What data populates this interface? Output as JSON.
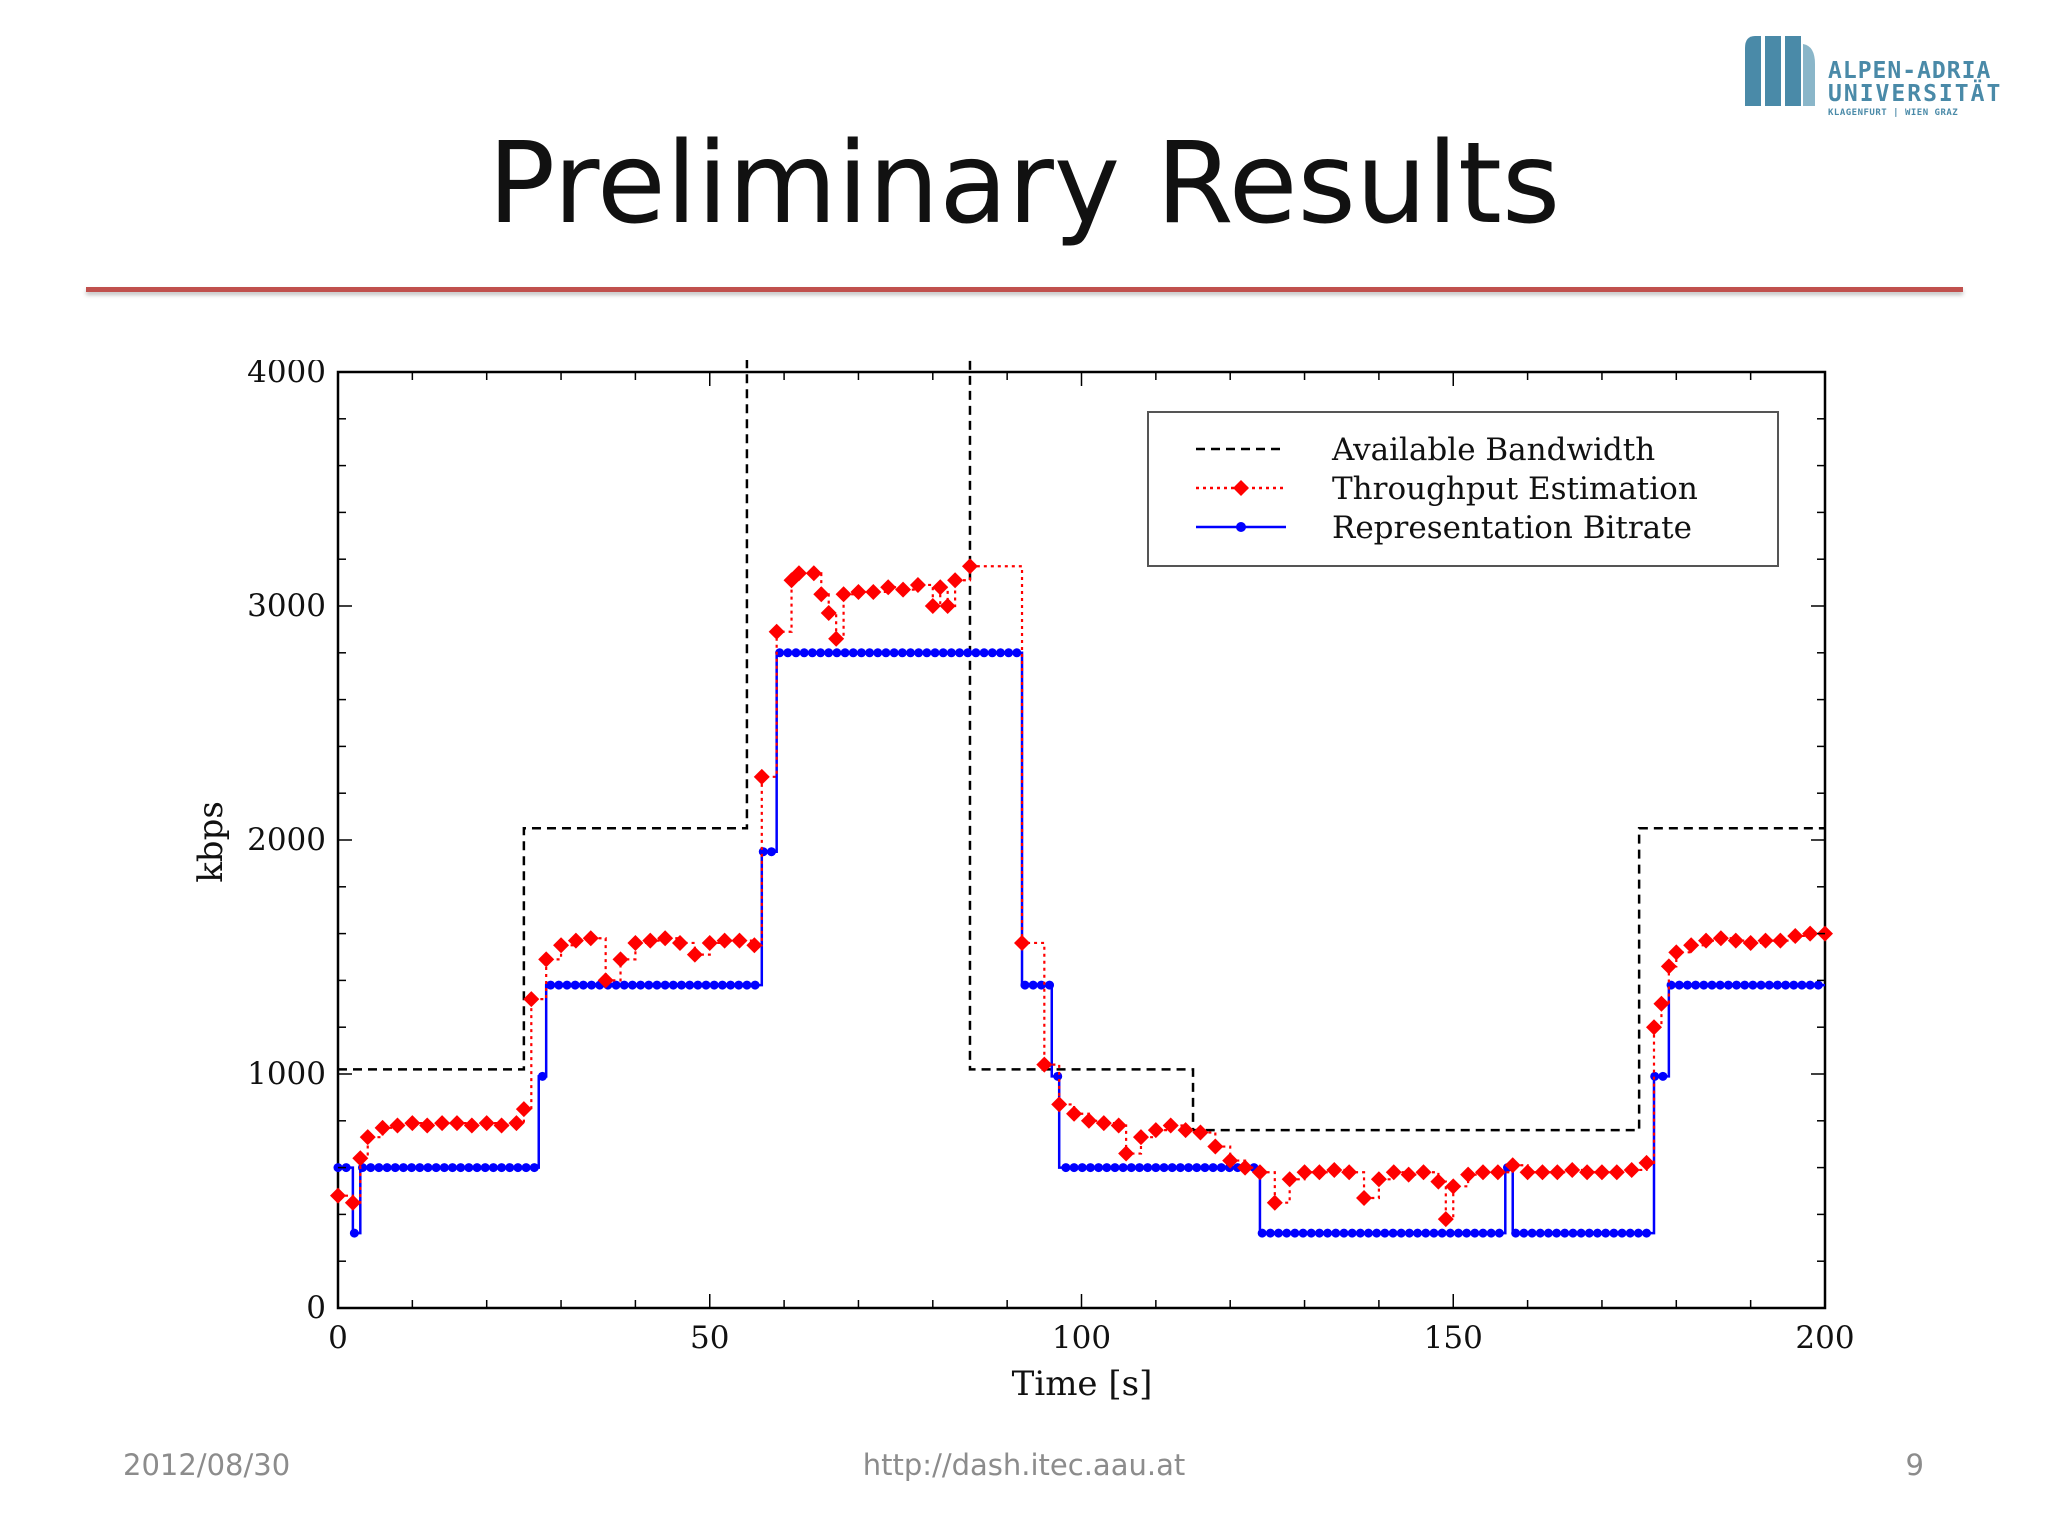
{
  "slide": {
    "title": "Preliminary Results",
    "footer_date": "2012/08/30",
    "footer_url": "http://dash.itec.aau.at",
    "page_number": "9"
  },
  "logo": {
    "line1": "ALPEN-ADRIA",
    "line2": "UNIVERSITÄT",
    "line3": "KLAGENFURT | WIEN GRAZ",
    "color": "#4a8aa8"
  },
  "chart_data": {
    "type": "line",
    "xlabel": "Time [s]",
    "ylabel": "kbps",
    "xlim": [
      0,
      200
    ],
    "ylim": [
      0,
      4000
    ],
    "xticks": [
      0,
      50,
      100,
      150,
      200
    ],
    "yticks": [
      0,
      1000,
      2000,
      3000,
      4000
    ],
    "grid": false,
    "legend_position": "top-right",
    "series": [
      {
        "name": "Available Bandwidth",
        "style": "dashed-step",
        "color": "#000000",
        "points": [
          [
            0,
            1020
          ],
          [
            25,
            1020
          ],
          [
            25,
            2050
          ],
          [
            55,
            2050
          ],
          [
            55,
            4100
          ],
          [
            85,
            4100
          ],
          [
            85,
            1020
          ],
          [
            115,
            1020
          ],
          [
            115,
            760
          ],
          [
            175,
            760
          ],
          [
            175,
            2050
          ],
          [
            200,
            2050
          ]
        ]
      },
      {
        "name": "Throughput Estimation",
        "style": "dotted-step-diamond",
        "color": "#ff0000",
        "points": [
          [
            0,
            480
          ],
          [
            2,
            450
          ],
          [
            3,
            640
          ],
          [
            4,
            730
          ],
          [
            6,
            770
          ],
          [
            8,
            780
          ],
          [
            10,
            790
          ],
          [
            12,
            780
          ],
          [
            14,
            790
          ],
          [
            16,
            790
          ],
          [
            18,
            780
          ],
          [
            20,
            790
          ],
          [
            22,
            780
          ],
          [
            24,
            790
          ],
          [
            25,
            850
          ],
          [
            26,
            1320
          ],
          [
            28,
            1490
          ],
          [
            30,
            1550
          ],
          [
            32,
            1570
          ],
          [
            34,
            1580
          ],
          [
            36,
            1400
          ],
          [
            38,
            1490
          ],
          [
            40,
            1560
          ],
          [
            42,
            1570
          ],
          [
            44,
            1580
          ],
          [
            46,
            1560
          ],
          [
            48,
            1510
          ],
          [
            50,
            1560
          ],
          [
            52,
            1570
          ],
          [
            54,
            1570
          ],
          [
            56,
            1550
          ],
          [
            57,
            2270
          ],
          [
            59,
            2890
          ],
          [
            61,
            3110
          ],
          [
            62,
            3140
          ],
          [
            64,
            3140
          ],
          [
            65,
            3050
          ],
          [
            66,
            2970
          ],
          [
            67,
            2860
          ],
          [
            68,
            3050
          ],
          [
            70,
            3060
          ],
          [
            72,
            3060
          ],
          [
            74,
            3080
          ],
          [
            76,
            3070
          ],
          [
            78,
            3090
          ],
          [
            80,
            3000
          ],
          [
            81,
            3080
          ],
          [
            82,
            3000
          ],
          [
            83,
            3110
          ],
          [
            85,
            3170
          ],
          [
            92,
            1560
          ],
          [
            95,
            1040
          ],
          [
            97,
            870
          ],
          [
            99,
            830
          ],
          [
            101,
            800
          ],
          [
            103,
            790
          ],
          [
            105,
            780
          ],
          [
            106,
            660
          ],
          [
            108,
            730
          ],
          [
            110,
            760
          ],
          [
            112,
            780
          ],
          [
            114,
            760
          ],
          [
            116,
            750
          ],
          [
            118,
            690
          ],
          [
            120,
            630
          ],
          [
            122,
            600
          ],
          [
            124,
            580
          ],
          [
            126,
            450
          ],
          [
            128,
            550
          ],
          [
            130,
            580
          ],
          [
            132,
            580
          ],
          [
            134,
            590
          ],
          [
            136,
            580
          ],
          [
            138,
            470
          ],
          [
            140,
            550
          ],
          [
            142,
            580
          ],
          [
            144,
            570
          ],
          [
            146,
            580
          ],
          [
            148,
            540
          ],
          [
            149,
            380
          ],
          [
            150,
            520
          ],
          [
            152,
            570
          ],
          [
            154,
            580
          ],
          [
            156,
            580
          ],
          [
            158,
            610
          ],
          [
            160,
            580
          ],
          [
            162,
            580
          ],
          [
            164,
            580
          ],
          [
            166,
            590
          ],
          [
            168,
            580
          ],
          [
            170,
            580
          ],
          [
            172,
            580
          ],
          [
            174,
            590
          ],
          [
            176,
            620
          ],
          [
            177,
            1200
          ],
          [
            178,
            1300
          ],
          [
            179,
            1460
          ],
          [
            180,
            1520
          ],
          [
            182,
            1550
          ],
          [
            184,
            1570
          ],
          [
            186,
            1580
          ],
          [
            188,
            1570
          ],
          [
            190,
            1560
          ],
          [
            192,
            1570
          ],
          [
            194,
            1570
          ],
          [
            196,
            1590
          ],
          [
            198,
            1600
          ],
          [
            200,
            1600
          ]
        ]
      },
      {
        "name": "Representation Bitrate",
        "style": "solid-step-circle",
        "color": "#0000ff",
        "points": [
          [
            0,
            600
          ],
          [
            2,
            320
          ],
          [
            3,
            600
          ],
          [
            27,
            990
          ],
          [
            28,
            1380
          ],
          [
            57,
            1950
          ],
          [
            59,
            2800
          ],
          [
            92,
            1380
          ],
          [
            96,
            990
          ],
          [
            97,
            600
          ],
          [
            124,
            320
          ],
          [
            157,
            600
          ],
          [
            158,
            320
          ],
          [
            177,
            990
          ],
          [
            179,
            1380
          ],
          [
            200,
            1380
          ]
        ]
      }
    ]
  }
}
